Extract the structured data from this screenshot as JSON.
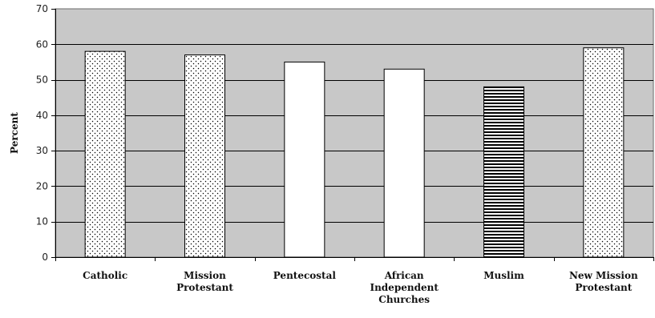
{
  "chart_data": {
    "type": "bar",
    "title": "",
    "xlabel": "",
    "ylabel": "Percent",
    "ylim": [
      0,
      70
    ],
    "yticks": [
      0,
      10,
      20,
      30,
      40,
      50,
      60,
      70
    ],
    "grid": true,
    "legend": "none",
    "colors": {
      "plot_background": "#c8c8c8",
      "bar_fill": "#ffffff",
      "bar_stroke": "#000000",
      "pattern_ink": "#000000"
    },
    "categories": [
      [
        "Catholic"
      ],
      [
        "Mission",
        "Protestant"
      ],
      [
        "Pentecostal"
      ],
      [
        "African",
        "Independent",
        "Churches"
      ],
      [
        "Muslim"
      ],
      [
        "New Mission",
        "Protestant"
      ]
    ],
    "values": [
      58,
      57,
      55,
      53,
      48,
      59
    ],
    "patterns": [
      "dots",
      "dots",
      "solid-white",
      "solid-white",
      "horizontal-stripes",
      "dots"
    ]
  }
}
